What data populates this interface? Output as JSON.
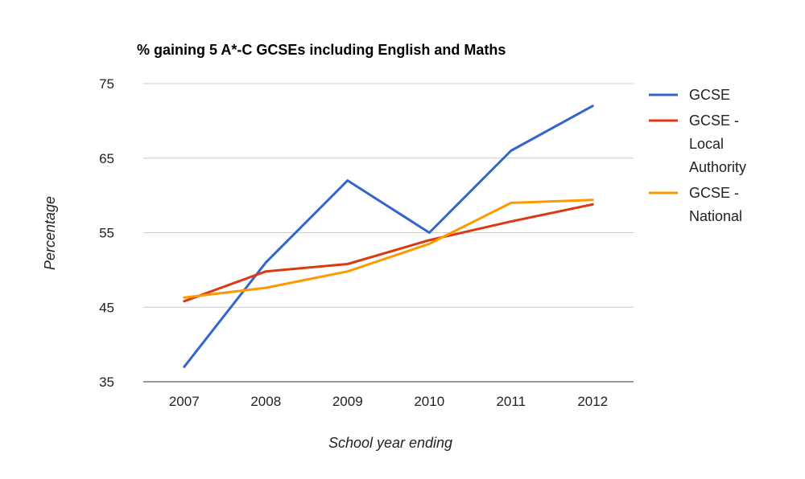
{
  "chart_data": {
    "type": "line",
    "title": "% gaining 5 A*-C GCSEs including English and Maths",
    "xlabel": "School year ending",
    "ylabel": "Percentage",
    "categories": [
      "2007",
      "2008",
      "2009",
      "2010",
      "2011",
      "2012"
    ],
    "yticks": [
      "75",
      "65",
      "55",
      "45",
      "35"
    ],
    "ylim": [
      35,
      75
    ],
    "grid": true,
    "legend_position": "right",
    "series": [
      {
        "name": "GCSE",
        "color": "#3366cc",
        "values": [
          37,
          51,
          62,
          55,
          66,
          72
        ]
      },
      {
        "name": "GCSE - Local Authority",
        "legend_lines": [
          "GCSE -",
          "Local",
          "Authority"
        ],
        "color": "#dc3912",
        "values": [
          45.8,
          49.8,
          50.8,
          54,
          56.5,
          58.8
        ]
      },
      {
        "name": "GCSE - National",
        "legend_lines": [
          "GCSE -",
          "National"
        ],
        "color": "#ff9900",
        "values": [
          46.3,
          47.6,
          49.8,
          53.5,
          59,
          59.4
        ]
      }
    ]
  }
}
